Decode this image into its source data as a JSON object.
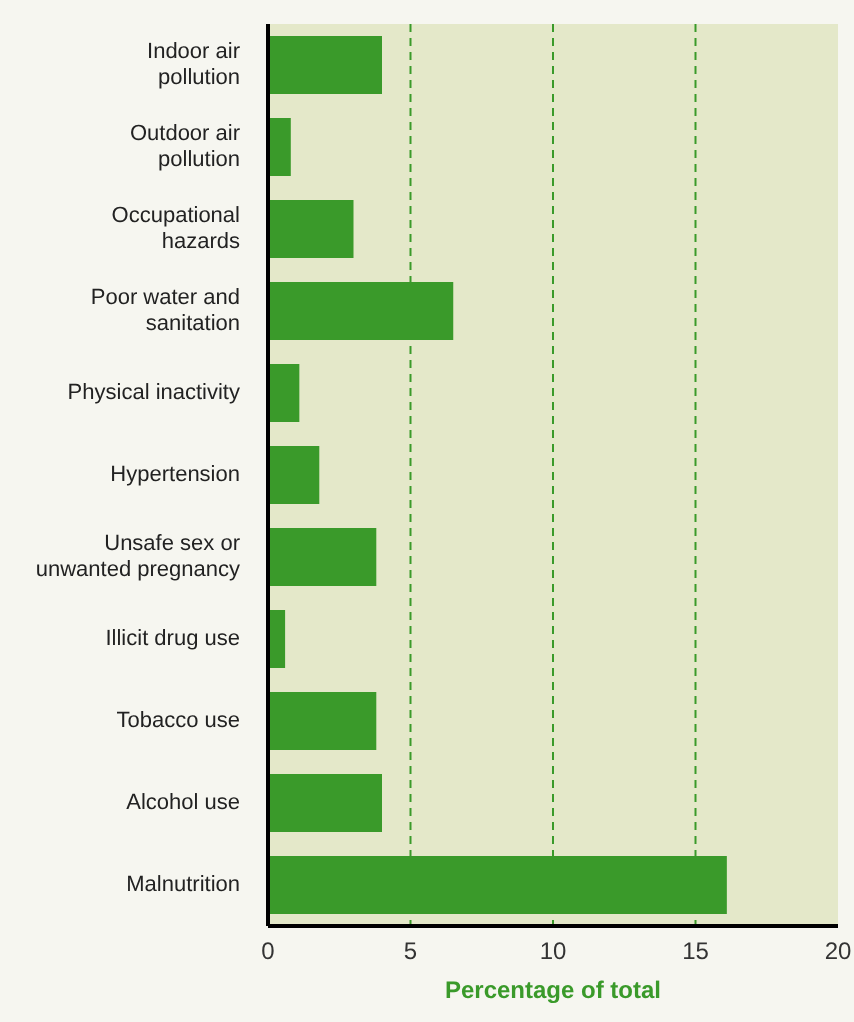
{
  "chart_data": {
    "type": "bar",
    "orientation": "horizontal",
    "categories": [
      "Indoor air pollution",
      "Outdoor air pollution",
      "Occupational hazards",
      "Poor water and sanitation",
      "Physical inactivity",
      "Hypertension",
      "Unsafe sex or unwanted pregnancy",
      "Illicit drug use",
      "Tobacco use",
      "Alcohol use",
      "Malnutrition"
    ],
    "values": [
      4.0,
      0.8,
      3.0,
      6.5,
      1.1,
      1.8,
      3.8,
      0.6,
      3.8,
      4.0,
      16.1
    ],
    "color": "#3a9a2a",
    "xlabel": "Percentage of total",
    "xlim": [
      0,
      20
    ],
    "xticks": [
      0,
      5,
      10,
      15,
      20
    ],
    "grid": "x"
  }
}
